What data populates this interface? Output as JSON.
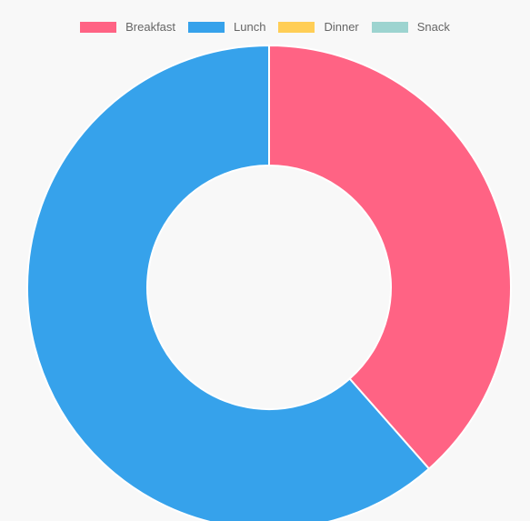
{
  "chart_data": {
    "type": "pie",
    "variant": "doughnut",
    "categories": [
      "Breakfast",
      "Lunch",
      "Dinner",
      "Snack"
    ],
    "values": [
      38.5,
      61.5,
      0,
      0
    ],
    "colors": [
      "#ff6384",
      "#36a2eb",
      "#ffce56",
      "#9dd4d0"
    ],
    "legend_position": "top",
    "title": ""
  }
}
